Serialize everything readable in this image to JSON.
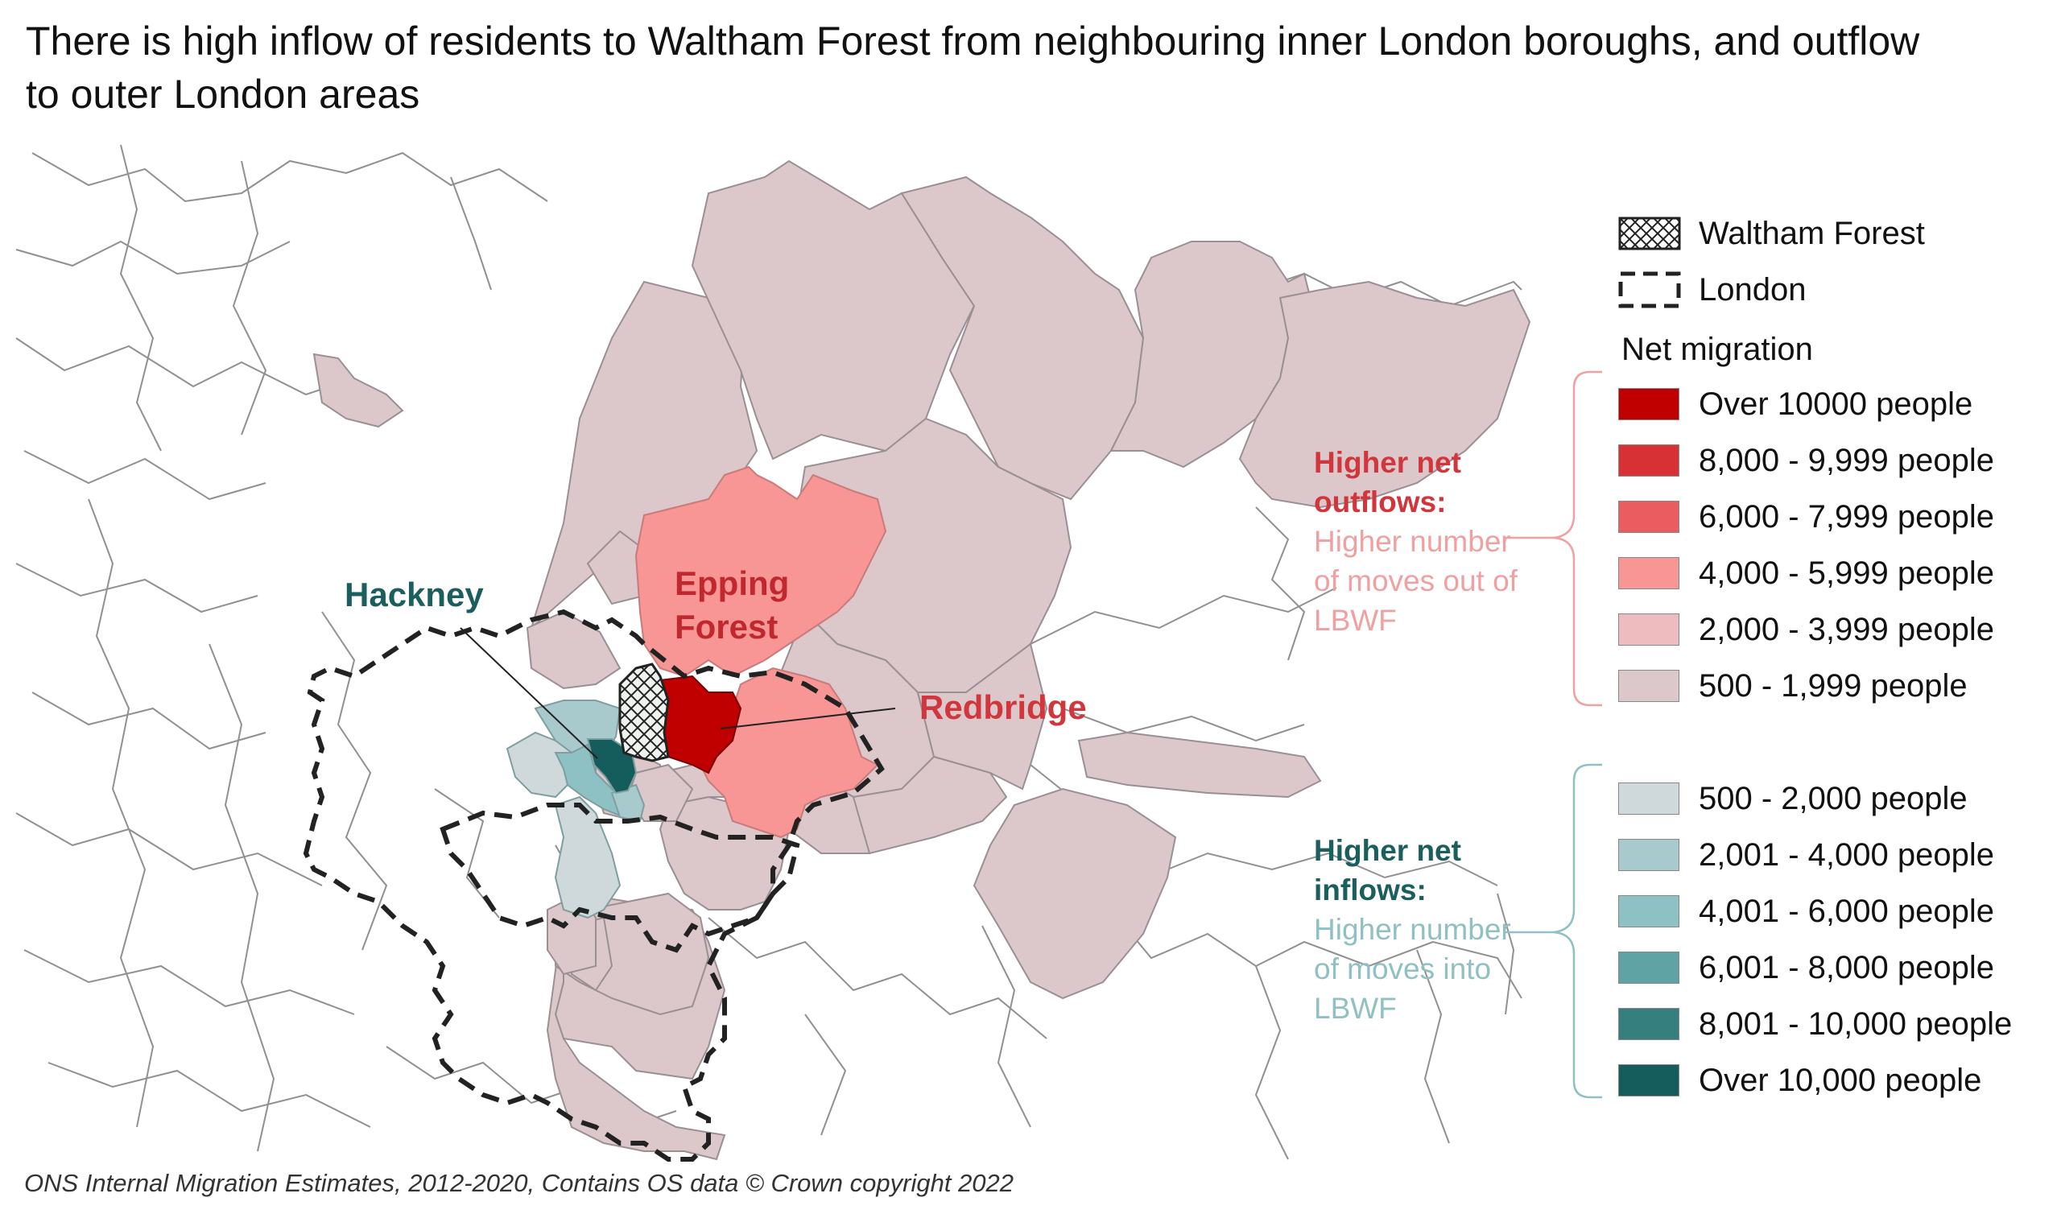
{
  "title": "There is high inflow of residents to Waltham Forest from neighbouring inner London boroughs, and outflow to outer London areas",
  "source": "ONS Internal Migration Estimates, 2012-2020, Contains OS data © Crown copyright 2022",
  "map_labels": {
    "hackney": "Hackney",
    "epping_forest": "Epping Forest",
    "redbridge": "Redbridge"
  },
  "legend": {
    "waltham_forest": "Waltham Forest",
    "london": "London",
    "heading": "Net migration",
    "outflow_classes": [
      {
        "label": "Over 10000 people",
        "color": "#c00000"
      },
      {
        "label": "8,000 - 9,999 people",
        "color": "#d73035"
      },
      {
        "label": "6,000 - 7,999 people",
        "color": "#ea5c60"
      },
      {
        "label": "4,000 - 5,999 people",
        "color": "#f79694"
      },
      {
        "label": "2,000 - 3,999 people",
        "color": "#eebcbf"
      },
      {
        "label": "500 - 1,999 people",
        "color": "#dcc8cb"
      }
    ],
    "inflow_classes": [
      {
        "label": "500 - 2,000 people",
        "color": "#cfd8da"
      },
      {
        "label": "2,001 - 4,000 people",
        "color": "#a9cacc"
      },
      {
        "label": "4,001 - 6,000 people",
        "color": "#8ec1c3"
      },
      {
        "label": "6,001 - 8,000 people",
        "color": "#5fa3a4"
      },
      {
        "label": "8,001 - 10,000 people",
        "color": "#357f7e"
      },
      {
        "label": "Over 10,000 people",
        "color": "#145d5c"
      }
    ]
  },
  "annotations": {
    "outflow_bold": "Higher net outflows:",
    "outflow_text": "Higher number of moves out of LBWF",
    "inflow_bold": "Higher net inflows:",
    "inflow_text": "Higher number of moves into LBWF"
  },
  "colors": {
    "outflow_accent": "#d0363c",
    "outflow_light": "#f0a0a0",
    "inflow_accent": "#1a5e5d",
    "inflow_light": "#8fc0c2",
    "boundary": "#909090"
  }
}
